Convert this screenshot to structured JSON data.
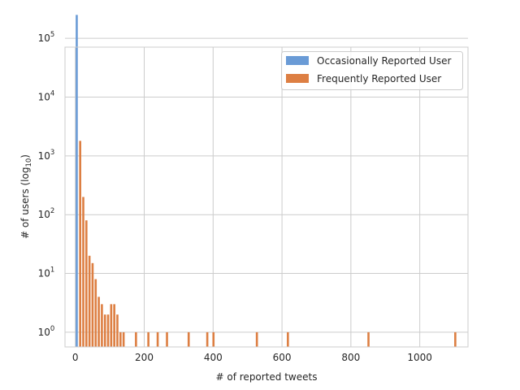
{
  "chart_data": {
    "type": "bar",
    "title": "",
    "xlabel": "# of reported tweets",
    "ylabel": {
      "main": "# of users (log",
      "sub": "10",
      "close": ")"
    },
    "xlim": [
      -30,
      1140
    ],
    "ylim_log10": [
      -0.25,
      4.85
    ],
    "y_scale": "log",
    "grid": true,
    "legend_position": "upper-right",
    "x_ticks": [
      {
        "value": 0,
        "label": "0"
      },
      {
        "value": 200,
        "label": "200"
      },
      {
        "value": 400,
        "label": "400"
      },
      {
        "value": 600,
        "label": "600"
      },
      {
        "value": 800,
        "label": "800"
      },
      {
        "value": 1000,
        "label": "1000"
      }
    ],
    "y_ticks": [
      {
        "exp": 0,
        "base": "10",
        "sup": "0"
      },
      {
        "exp": 1,
        "base": "10",
        "sup": "1"
      },
      {
        "exp": 2,
        "base": "10",
        "sup": "2"
      },
      {
        "exp": 3,
        "base": "10",
        "sup": "3"
      },
      {
        "exp": 4,
        "base": "10",
        "sup": "4"
      },
      {
        "exp": 5,
        "base": "10",
        "sup": "5"
      }
    ],
    "bin_width": 9,
    "series": [
      {
        "name": "Occasionally Reported User",
        "color": "#6a9bd6",
        "bars": [
          {
            "x": 1,
            "value": 250000
          }
        ]
      },
      {
        "name": "Frequently Reported User",
        "color": "#dd7f43",
        "bars": [
          {
            "x": 11,
            "value": 1800
          },
          {
            "x": 20,
            "value": 200
          },
          {
            "x": 29,
            "value": 80
          },
          {
            "x": 38,
            "value": 20
          },
          {
            "x": 47,
            "value": 15
          },
          {
            "x": 56,
            "value": 8
          },
          {
            "x": 65,
            "value": 4
          },
          {
            "x": 74,
            "value": 3
          },
          {
            "x": 83,
            "value": 2
          },
          {
            "x": 92,
            "value": 2
          },
          {
            "x": 101,
            "value": 3
          },
          {
            "x": 110,
            "value": 3
          },
          {
            "x": 119,
            "value": 2
          },
          {
            "x": 128,
            "value": 1
          },
          {
            "x": 137,
            "value": 1
          },
          {
            "x": 173,
            "value": 1
          },
          {
            "x": 209,
            "value": 1
          },
          {
            "x": 236,
            "value": 1
          },
          {
            "x": 263,
            "value": 1
          },
          {
            "x": 326,
            "value": 1
          },
          {
            "x": 380,
            "value": 1
          },
          {
            "x": 398,
            "value": 1
          },
          {
            "x": 524,
            "value": 1
          },
          {
            "x": 614,
            "value": 1
          },
          {
            "x": 848,
            "value": 1
          },
          {
            "x": 1100,
            "value": 1
          }
        ]
      }
    ]
  }
}
